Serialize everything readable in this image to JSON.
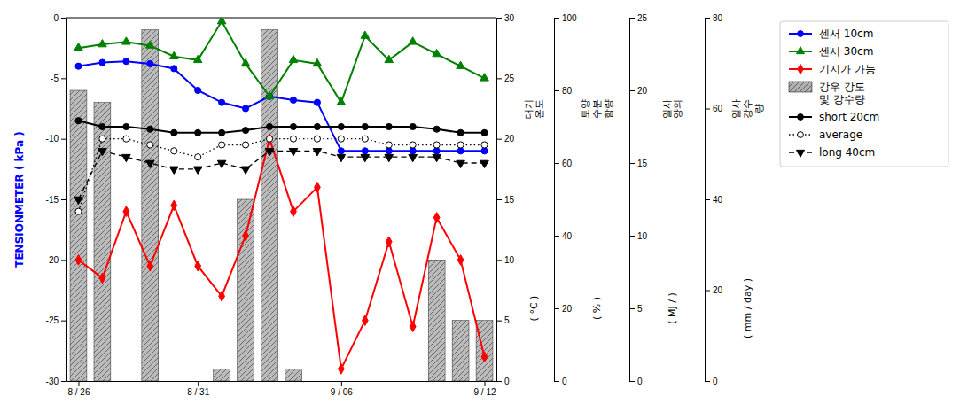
{
  "chart_data": {
    "type": "line",
    "ylabel": "TENSIONMETER ( kPa )",
    "x": [
      0,
      1,
      2,
      3,
      4,
      5,
      6,
      7,
      8,
      9,
      10,
      11,
      12,
      13,
      14,
      15,
      16,
      17
    ],
    "xlim": [
      -0.5,
      17.5
    ],
    "xticks": [
      {
        "value": 0,
        "label": "8 / 26"
      },
      {
        "value": 5,
        "label": "8 / 31"
      },
      {
        "value": 11,
        "label": "9 / 06"
      },
      {
        "value": 17,
        "label": "9 / 12"
      }
    ],
    "ylim": [
      -30,
      0
    ],
    "yticks": [
      -30,
      -25,
      -20,
      -15,
      -10,
      -5,
      0
    ],
    "y2lim": [
      0,
      30
    ],
    "y2ticks": [
      0,
      5,
      10,
      15,
      20,
      25,
      30
    ],
    "y2label": "대기\n온도",
    "y2unit": "( °C )",
    "extra_axes": [
      {
        "ylim": [
          0,
          100
        ],
        "yticks": [
          0,
          20,
          40,
          60,
          80,
          100
        ],
        "label": "토양\n수분\n함량",
        "unit": "( % )"
      },
      {
        "ylim": [
          0,
          25
        ],
        "yticks": [
          0,
          5,
          10,
          15,
          20,
          25
        ],
        "label": "일사\n양의",
        "unit": "( MJ / )"
      },
      {
        "ylim": [
          0,
          80
        ],
        "yticks": [
          0,
          20,
          40,
          60,
          80
        ],
        "label": "일사\n강수\n량",
        "unit": "( mm / day )"
      }
    ],
    "grid": false,
    "series": [
      {
        "name": "센서 10cm",
        "type": "line",
        "color": "blue",
        "marker": "circle",
        "line_style": "solid",
        "values": [
          -4.0,
          -3.7,
          -3.6,
          -3.8,
          -4.2,
          -6.0,
          -7.0,
          -7.5,
          -6.5,
          -6.8,
          -7.0,
          -11.0,
          -11.0,
          -11.0,
          -11.0,
          -11.0,
          -11.0,
          -11.0
        ]
      },
      {
        "name": "센서 30cm",
        "type": "line",
        "color": "green",
        "marker": "triangle-up",
        "line_style": "solid",
        "values": [
          -2.5,
          -2.2,
          -2.0,
          -2.3,
          -3.2,
          -3.5,
          -0.3,
          -3.8,
          -6.5,
          -3.5,
          -3.8,
          -7.0,
          -1.5,
          -3.5,
          -2.0,
          -3.0,
          -4.0,
          -5.0
        ]
      },
      {
        "name": "기지가 가능",
        "type": "line",
        "color": "red",
        "marker": "diamond",
        "line_style": "solid",
        "values": [
          -20.0,
          -21.5,
          -16.0,
          -20.5,
          -15.5,
          -20.5,
          -23.0,
          -18.0,
          -10.0,
          -16.0,
          -14.0,
          -29.0,
          -25.0,
          -18.5,
          -25.5,
          -16.5,
          -20.0,
          -28.0
        ]
      },
      {
        "name": "강우 강도\n및 강수량",
        "type": "bar",
        "axis": "y2",
        "color": "#b0b0b0",
        "values": [
          24,
          23,
          0,
          29,
          0,
          0,
          1,
          15,
          29,
          1,
          0,
          0,
          0,
          0,
          0,
          10,
          5,
          5
        ]
      },
      {
        "name": "short 20cm",
        "type": "line",
        "color": "black",
        "marker": "circle",
        "line_style": "solid",
        "values": [
          -8.5,
          -9.0,
          -9.0,
          -9.2,
          -9.5,
          -9.5,
          -9.5,
          -9.3,
          -9.0,
          -9.0,
          -9.0,
          -9.0,
          -9.0,
          -9.0,
          -9.0,
          -9.2,
          -9.5,
          -9.5
        ]
      },
      {
        "name": "average",
        "type": "line",
        "color": "black",
        "marker": "circle-open",
        "line_style": "dotted",
        "values": [
          -16.0,
          -10.0,
          -10.0,
          -10.5,
          -11.0,
          -11.5,
          -10.5,
          -10.5,
          -10.0,
          -10.0,
          -10.0,
          -10.0,
          -10.0,
          -10.5,
          -10.5,
          -10.5,
          -10.5,
          -10.5
        ]
      },
      {
        "name": "long 40cm",
        "type": "line",
        "color": "black",
        "marker": "triangle-down",
        "line_style": "dashed",
        "values": [
          -15.0,
          -11.0,
          -11.5,
          -12.0,
          -12.5,
          -12.5,
          -12.0,
          -12.5,
          -11.0,
          -11.0,
          -11.0,
          -11.5,
          -11.5,
          -11.5,
          -11.5,
          -11.5,
          -12.0,
          -12.0
        ]
      }
    ]
  }
}
